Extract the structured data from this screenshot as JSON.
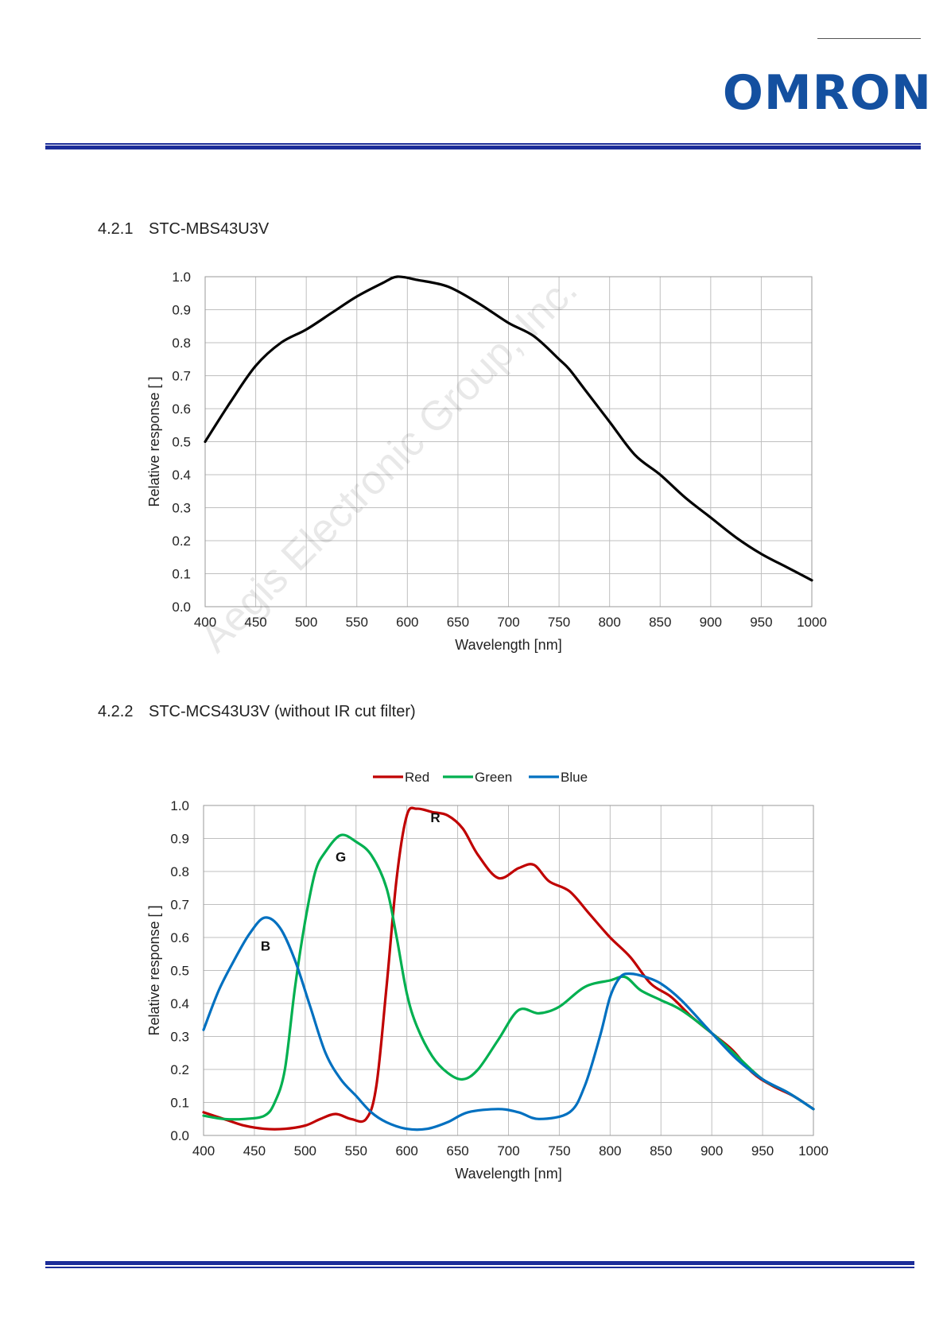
{
  "brand": {
    "logo_text": "OMRON",
    "color": "#1450a0"
  },
  "rules": {
    "color": "#1c2d99"
  },
  "watermark": "Aegis Electronic Group, Inc.",
  "sections": [
    {
      "number": "4.2.1",
      "title": "STC-MBS43U3V"
    },
    {
      "number": "4.2.2",
      "title": "STC-MCS43U3V (without IR cut filter)"
    }
  ],
  "chart_data": [
    {
      "type": "line",
      "xlabel": "Wavelength  [nm]",
      "ylabel": "Relative response [ ]",
      "xlim": [
        400,
        1000
      ],
      "ylim": [
        0,
        1
      ],
      "xticks": [
        400,
        450,
        500,
        550,
        600,
        650,
        700,
        750,
        800,
        850,
        900,
        950,
        1000
      ],
      "yticks": [
        "0.0",
        "0.1",
        "0.2",
        "0.3",
        "0.4",
        "0.5",
        "0.6",
        "0.7",
        "0.8",
        "0.9",
        "1.0"
      ],
      "grid": true,
      "series": [
        {
          "color": "#000000",
          "x": [
            400,
            425,
            450,
            475,
            500,
            525,
            550,
            575,
            590,
            610,
            640,
            670,
            700,
            725,
            750,
            760,
            775,
            800,
            825,
            850,
            875,
            900,
            925,
            950,
            975,
            1000
          ],
          "y": [
            0.5,
            0.62,
            0.73,
            0.8,
            0.84,
            0.89,
            0.94,
            0.98,
            1.0,
            0.99,
            0.97,
            0.92,
            0.86,
            0.82,
            0.75,
            0.72,
            0.66,
            0.56,
            0.46,
            0.4,
            0.33,
            0.27,
            0.21,
            0.16,
            0.12,
            0.08
          ]
        }
      ]
    },
    {
      "type": "line",
      "xlabel": "Wavelength  [nm]",
      "ylabel": "Relative response [ ]",
      "xlim": [
        400,
        1000
      ],
      "ylim": [
        0,
        1
      ],
      "xticks": [
        400,
        450,
        500,
        550,
        600,
        650,
        700,
        750,
        800,
        850,
        900,
        950,
        1000
      ],
      "yticks": [
        "0.0",
        "0.1",
        "0.2",
        "0.3",
        "0.4",
        "0.5",
        "0.6",
        "0.7",
        "0.8",
        "0.9",
        "1.0"
      ],
      "grid": true,
      "legend": "top",
      "annotations": [
        {
          "text": "R",
          "x": 628,
          "y": 0.95
        },
        {
          "text": "G",
          "x": 535,
          "y": 0.83
        },
        {
          "text": "B",
          "x": 461,
          "y": 0.56
        }
      ],
      "series": [
        {
          "name": "Red",
          "color": "#c00000",
          "x": [
            400,
            420,
            440,
            460,
            480,
            500,
            515,
            530,
            545,
            560,
            570,
            580,
            590,
            600,
            610,
            625,
            640,
            655,
            670,
            690,
            710,
            725,
            740,
            760,
            780,
            800,
            820,
            840,
            860,
            880,
            900,
            920,
            940,
            960,
            980,
            1000
          ],
          "y": [
            0.07,
            0.05,
            0.03,
            0.02,
            0.02,
            0.03,
            0.05,
            0.065,
            0.05,
            0.05,
            0.15,
            0.45,
            0.78,
            0.97,
            0.99,
            0.98,
            0.97,
            0.93,
            0.85,
            0.78,
            0.81,
            0.82,
            0.77,
            0.74,
            0.67,
            0.6,
            0.54,
            0.46,
            0.42,
            0.36,
            0.31,
            0.26,
            0.19,
            0.15,
            0.12,
            0.08
          ]
        },
        {
          "name": "Green",
          "color": "#00b050",
          "x": [
            400,
            420,
            440,
            460,
            470,
            480,
            490,
            500,
            510,
            520,
            535,
            550,
            565,
            580,
            590,
            600,
            610,
            625,
            640,
            655,
            670,
            690,
            710,
            730,
            750,
            775,
            800,
            815,
            830,
            850,
            870,
            900,
            925,
            950,
            975,
            1000
          ],
          "y": [
            0.06,
            0.05,
            0.05,
            0.06,
            0.1,
            0.2,
            0.45,
            0.65,
            0.8,
            0.86,
            0.91,
            0.89,
            0.85,
            0.75,
            0.6,
            0.43,
            0.33,
            0.24,
            0.19,
            0.17,
            0.2,
            0.29,
            0.38,
            0.37,
            0.39,
            0.45,
            0.47,
            0.48,
            0.44,
            0.41,
            0.38,
            0.31,
            0.24,
            0.17,
            0.13,
            0.08
          ]
        },
        {
          "name": "Blue",
          "color": "#0070c0",
          "x": [
            400,
            415,
            430,
            445,
            460,
            475,
            490,
            505,
            520,
            535,
            550,
            565,
            580,
            600,
            620,
            640,
            660,
            690,
            710,
            730,
            760,
            775,
            790,
            800,
            810,
            820,
            835,
            850,
            870,
            900,
            925,
            950,
            975,
            1000
          ],
          "y": [
            0.32,
            0.44,
            0.53,
            0.61,
            0.66,
            0.63,
            0.53,
            0.39,
            0.25,
            0.17,
            0.12,
            0.07,
            0.04,
            0.02,
            0.02,
            0.04,
            0.07,
            0.08,
            0.07,
            0.05,
            0.07,
            0.15,
            0.3,
            0.42,
            0.48,
            0.49,
            0.48,
            0.46,
            0.41,
            0.31,
            0.23,
            0.17,
            0.13,
            0.08
          ]
        }
      ]
    }
  ]
}
